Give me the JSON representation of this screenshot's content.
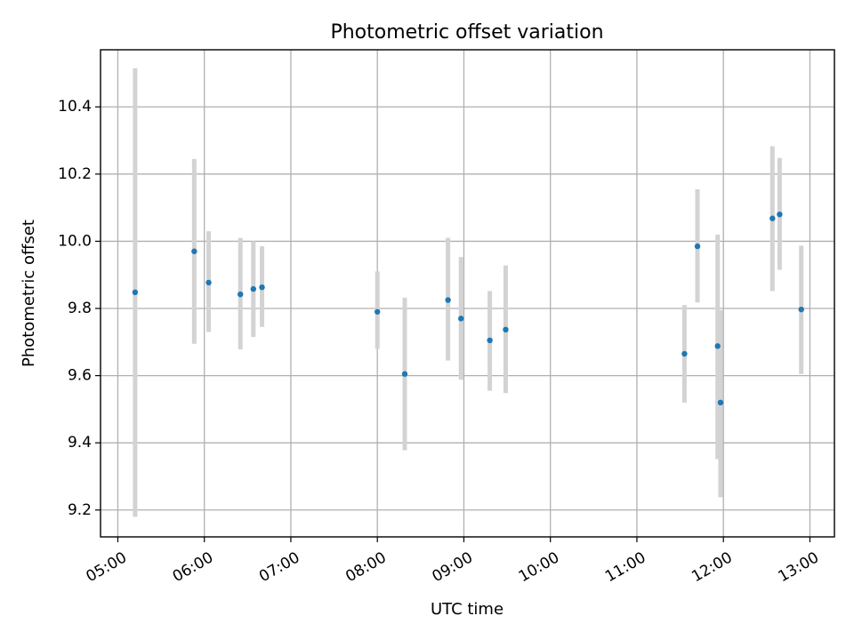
{
  "chart_data": {
    "type": "scatter",
    "title": "Photometric offset variation",
    "xlabel": "UTC time",
    "ylabel": "Photometric offset",
    "x_ticks": [
      "05:00",
      "06:00",
      "07:00",
      "08:00",
      "09:00",
      "10:00",
      "11:00",
      "12:00",
      "13:00"
    ],
    "y_ticks": [
      "9.2",
      "9.4",
      "9.6",
      "9.8",
      "10.0",
      "10.2",
      "10.4"
    ],
    "xlim": [
      "04:48",
      "13:17"
    ],
    "ylim": [
      9.12,
      10.57
    ],
    "grid": true,
    "colors": {
      "point": "#1f77b4",
      "errorbar": "#d3d3d3",
      "grid": "#b0b0b0"
    },
    "series": [
      {
        "points": [
          {
            "x": "05:12",
            "y": 9.848,
            "yerr_low": 9.18,
            "yerr_high": 10.515
          },
          {
            "x": "05:53",
            "y": 9.97,
            "yerr_low": 9.695,
            "yerr_high": 10.245
          },
          {
            "x": "06:03",
            "y": 9.877,
            "yerr_low": 9.73,
            "yerr_high": 10.03
          },
          {
            "x": "06:25",
            "y": 9.842,
            "yerr_low": 9.678,
            "yerr_high": 10.01
          },
          {
            "x": "06:34",
            "y": 9.858,
            "yerr_low": 9.715,
            "yerr_high": 10.0
          },
          {
            "x": "06:40",
            "y": 9.863,
            "yerr_low": 9.745,
            "yerr_high": 9.985
          },
          {
            "x": "08:00",
            "y": 9.79,
            "yerr_low": 9.68,
            "yerr_high": 9.91
          },
          {
            "x": "08:19",
            "y": 9.605,
            "yerr_low": 9.378,
            "yerr_high": 9.832
          },
          {
            "x": "08:49",
            "y": 9.825,
            "yerr_low": 9.645,
            "yerr_high": 10.01
          },
          {
            "x": "08:58",
            "y": 9.77,
            "yerr_low": 9.588,
            "yerr_high": 9.953
          },
          {
            "x": "09:18",
            "y": 9.705,
            "yerr_low": 9.555,
            "yerr_high": 9.852
          },
          {
            "x": "09:29",
            "y": 9.737,
            "yerr_low": 9.548,
            "yerr_high": 9.928
          },
          {
            "x": "11:33",
            "y": 9.665,
            "yerr_low": 9.52,
            "yerr_high": 9.81
          },
          {
            "x": "11:42",
            "y": 9.985,
            "yerr_low": 9.818,
            "yerr_high": 10.155
          },
          {
            "x": "11:56",
            "y": 9.688,
            "yerr_low": 9.352,
            "yerr_high": 10.02
          },
          {
            "x": "11:58",
            "y": 9.52,
            "yerr_low": 9.238,
            "yerr_high": 9.795
          },
          {
            "x": "12:34",
            "y": 10.068,
            "yerr_low": 9.852,
            "yerr_high": 10.283
          },
          {
            "x": "12:39",
            "y": 10.08,
            "yerr_low": 9.915,
            "yerr_high": 10.248
          },
          {
            "x": "12:54",
            "y": 9.797,
            "yerr_low": 9.605,
            "yerr_high": 9.987
          }
        ]
      }
    ]
  }
}
